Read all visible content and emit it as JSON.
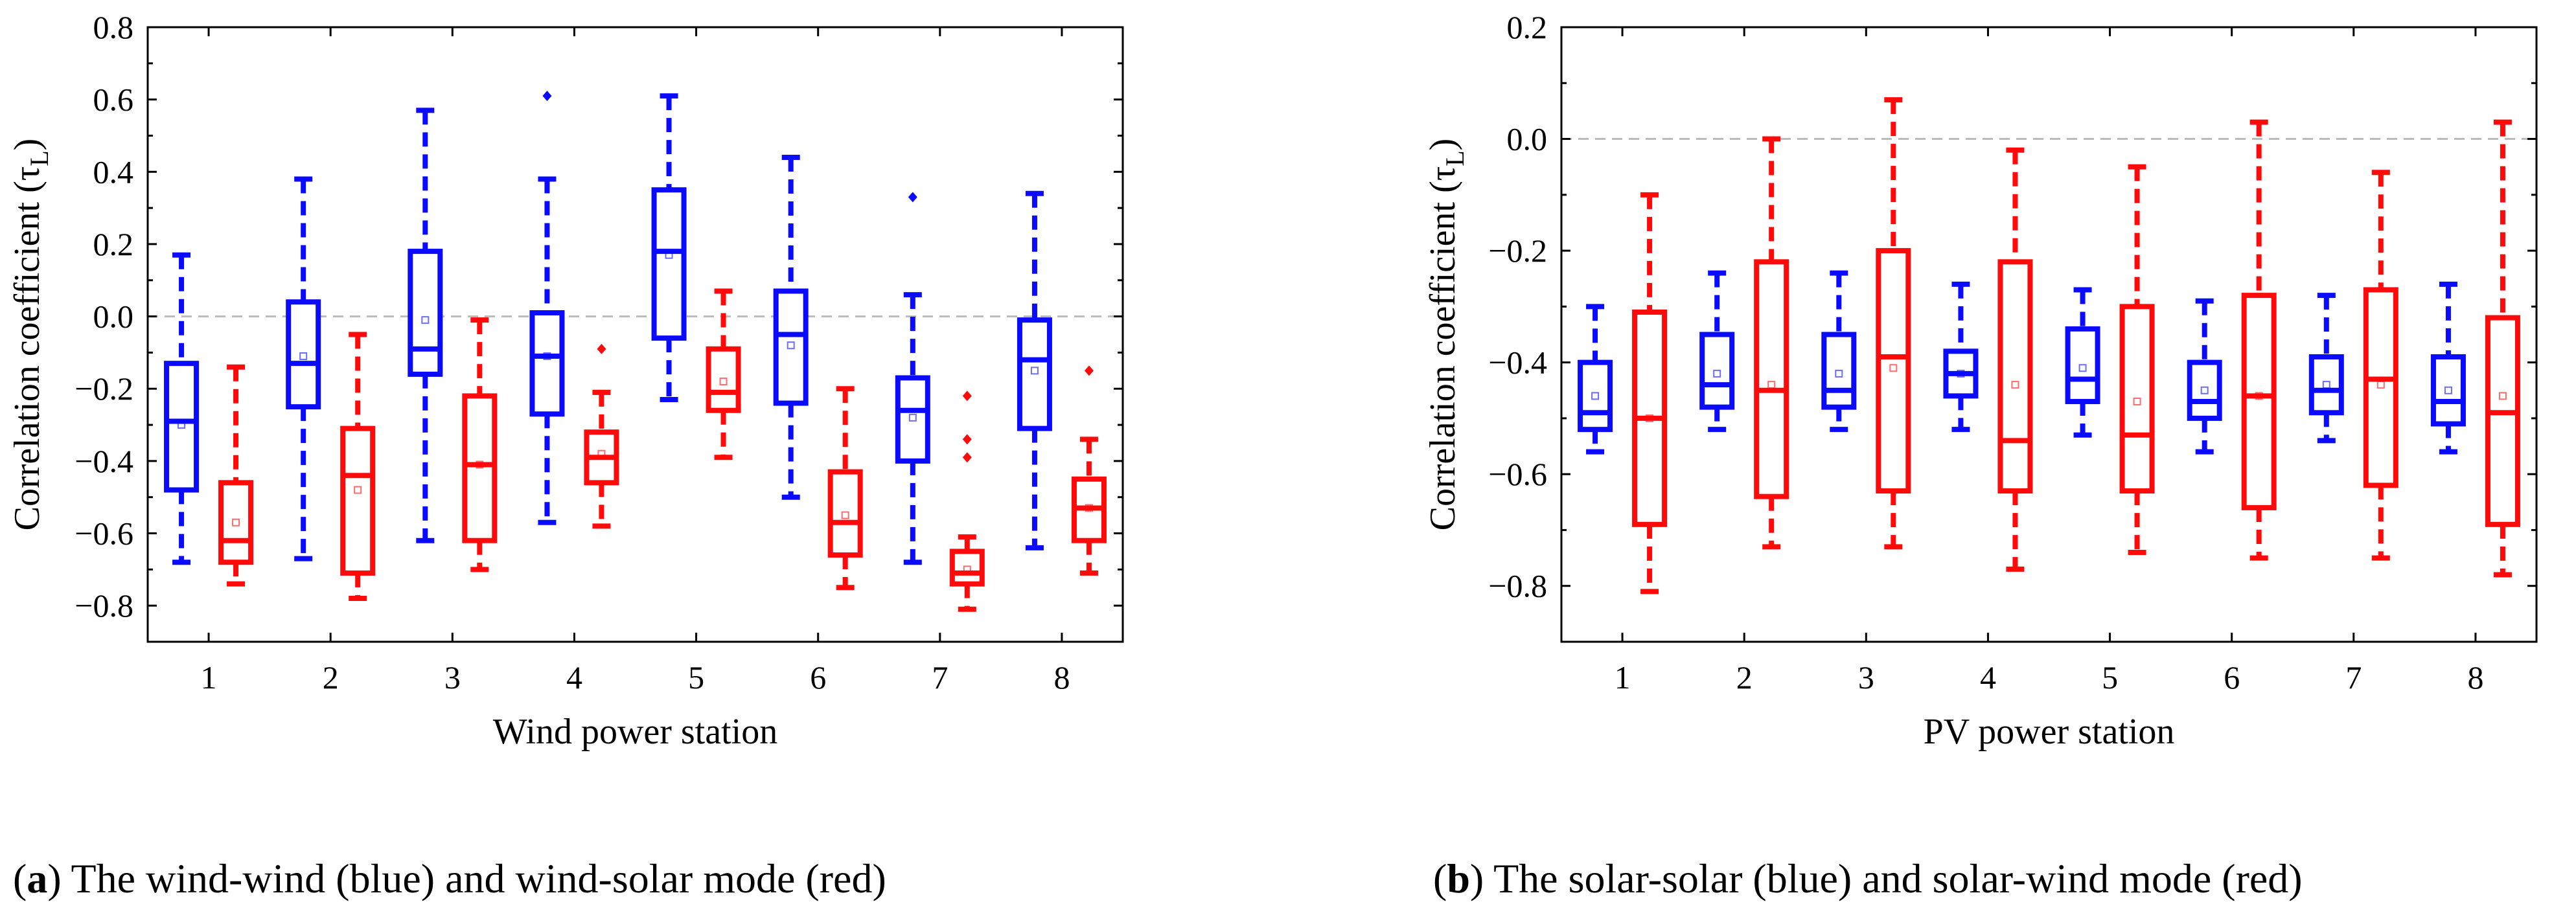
{
  "colors": {
    "blue": "#0a0aff",
    "red": "#ff0a0a",
    "zero_line": "#bbbbbb",
    "axis": "#000000"
  },
  "captions": {
    "a": {
      "label": "a",
      "text": " The wind-wind (blue) and wind-solar mode (red)"
    },
    "b": {
      "label": "b",
      "text": " The solar-solar (blue) and solar-wind mode (red)"
    }
  },
  "chart_data": [
    {
      "type": "box",
      "panel": "a",
      "xlabel": "Wind power station",
      "ylabel_main": "Correlation coefficient (τ",
      "ylabel_sub": "L",
      "ylabel_end": ")",
      "ylim": [
        -0.9,
        0.8
      ],
      "yticks": [
        -0.8,
        -0.6,
        -0.4,
        -0.2,
        0.0,
        0.2,
        0.4,
        0.6,
        0.8
      ],
      "ytick_labels": [
        "−0.8",
        "−0.6",
        "−0.4",
        "−0.2",
        "0.0",
        "0.2",
        "0.4",
        "0.6",
        "0.8"
      ],
      "categories": [
        "1",
        "2",
        "3",
        "4",
        "5",
        "6",
        "7",
        "8"
      ],
      "reference_line": 0.0,
      "series": [
        {
          "name": "wind-wind",
          "color": "blue",
          "boxes": [
            {
              "min": -0.68,
              "q1": -0.48,
              "median": -0.29,
              "q3": -0.13,
              "max": 0.17,
              "mean": -0.3,
              "outliers": []
            },
            {
              "min": -0.67,
              "q1": -0.25,
              "median": -0.13,
              "q3": 0.04,
              "max": 0.38,
              "mean": -0.11,
              "outliers": []
            },
            {
              "min": -0.62,
              "q1": -0.16,
              "median": -0.09,
              "q3": 0.18,
              "max": 0.57,
              "mean": -0.01,
              "outliers": []
            },
            {
              "min": -0.57,
              "q1": -0.27,
              "median": -0.11,
              "q3": 0.01,
              "max": 0.38,
              "mean": -0.11,
              "outliers": [
                0.61
              ]
            },
            {
              "min": -0.23,
              "q1": -0.06,
              "median": 0.18,
              "q3": 0.35,
              "max": 0.61,
              "mean": 0.17,
              "outliers": []
            },
            {
              "min": -0.5,
              "q1": -0.24,
              "median": -0.05,
              "q3": 0.07,
              "max": 0.44,
              "mean": -0.08,
              "outliers": []
            },
            {
              "min": -0.68,
              "q1": -0.4,
              "median": -0.26,
              "q3": -0.17,
              "max": 0.06,
              "mean": -0.28,
              "outliers": [
                0.33
              ]
            },
            {
              "min": -0.64,
              "q1": -0.31,
              "median": -0.12,
              "q3": -0.01,
              "max": 0.34,
              "mean": -0.15,
              "outliers": []
            }
          ]
        },
        {
          "name": "wind-solar",
          "color": "red",
          "boxes": [
            {
              "min": -0.74,
              "q1": -0.68,
              "median": -0.62,
              "q3": -0.46,
              "max": -0.14,
              "mean": -0.57,
              "outliers": []
            },
            {
              "min": -0.78,
              "q1": -0.71,
              "median": -0.44,
              "q3": -0.31,
              "max": -0.05,
              "mean": -0.48,
              "outliers": []
            },
            {
              "min": -0.7,
              "q1": -0.62,
              "median": -0.41,
              "q3": -0.22,
              "max": -0.01,
              "mean": -0.41,
              "outliers": []
            },
            {
              "min": -0.58,
              "q1": -0.46,
              "median": -0.39,
              "q3": -0.32,
              "max": -0.21,
              "mean": -0.38,
              "outliers": [
                -0.09
              ]
            },
            {
              "min": -0.39,
              "q1": -0.26,
              "median": -0.21,
              "q3": -0.09,
              "max": 0.07,
              "mean": -0.18,
              "outliers": []
            },
            {
              "min": -0.75,
              "q1": -0.66,
              "median": -0.57,
              "q3": -0.43,
              "max": -0.2,
              "mean": -0.55,
              "outliers": []
            },
            {
              "min": -0.81,
              "q1": -0.74,
              "median": -0.71,
              "q3": -0.65,
              "max": -0.61,
              "mean": -0.7,
              "outliers": [
                -0.22,
                -0.34,
                -0.39
              ]
            },
            {
              "min": -0.71,
              "q1": -0.62,
              "median": -0.53,
              "q3": -0.45,
              "max": -0.34,
              "mean": -0.53,
              "outliers": [
                -0.15
              ]
            }
          ]
        }
      ]
    },
    {
      "type": "box",
      "panel": "b",
      "xlabel": "PV power station",
      "ylabel_main": "Correlation coefficient (τ",
      "ylabel_sub": "L",
      "ylabel_end": ")",
      "ylim": [
        -0.9,
        0.2
      ],
      "yticks": [
        -0.8,
        -0.6,
        -0.4,
        -0.2,
        0.0,
        0.2
      ],
      "ytick_labels": [
        "−0.8",
        "−0.6",
        "−0.4",
        "−0.2",
        "0.0",
        "0.2"
      ],
      "categories": [
        "1",
        "2",
        "3",
        "4",
        "5",
        "6",
        "7",
        "8"
      ],
      "reference_line": 0.0,
      "series": [
        {
          "name": "solar-solar",
          "color": "blue",
          "boxes": [
            {
              "min": -0.56,
              "q1": -0.52,
              "median": -0.49,
              "q3": -0.4,
              "max": -0.3,
              "mean": -0.46,
              "outliers": []
            },
            {
              "min": -0.52,
              "q1": -0.48,
              "median": -0.44,
              "q3": -0.35,
              "max": -0.24,
              "mean": -0.42,
              "outliers": []
            },
            {
              "min": -0.52,
              "q1": -0.48,
              "median": -0.45,
              "q3": -0.35,
              "max": -0.24,
              "mean": -0.42,
              "outliers": []
            },
            {
              "min": -0.52,
              "q1": -0.46,
              "median": -0.42,
              "q3": -0.38,
              "max": -0.26,
              "mean": -0.42,
              "outliers": []
            },
            {
              "min": -0.53,
              "q1": -0.47,
              "median": -0.43,
              "q3": -0.34,
              "max": -0.27,
              "mean": -0.41,
              "outliers": []
            },
            {
              "min": -0.56,
              "q1": -0.5,
              "median": -0.47,
              "q3": -0.4,
              "max": -0.29,
              "mean": -0.45,
              "outliers": []
            },
            {
              "min": -0.54,
              "q1": -0.49,
              "median": -0.45,
              "q3": -0.39,
              "max": -0.28,
              "mean": -0.44,
              "outliers": []
            },
            {
              "min": -0.56,
              "q1": -0.51,
              "median": -0.47,
              "q3": -0.39,
              "max": -0.26,
              "mean": -0.45,
              "outliers": []
            }
          ]
        },
        {
          "name": "solar-wind",
          "color": "red",
          "boxes": [
            {
              "min": -0.81,
              "q1": -0.69,
              "median": -0.5,
              "q3": -0.31,
              "max": -0.1,
              "mean": -0.5,
              "outliers": []
            },
            {
              "min": -0.73,
              "q1": -0.64,
              "median": -0.45,
              "q3": -0.22,
              "max": 0.0,
              "mean": -0.44,
              "outliers": []
            },
            {
              "min": -0.73,
              "q1": -0.63,
              "median": -0.39,
              "q3": -0.2,
              "max": 0.07,
              "mean": -0.41,
              "outliers": []
            },
            {
              "min": -0.77,
              "q1": -0.63,
              "median": -0.54,
              "q3": -0.22,
              "max": -0.02,
              "mean": -0.44,
              "outliers": []
            },
            {
              "min": -0.74,
              "q1": -0.63,
              "median": -0.53,
              "q3": -0.3,
              "max": -0.05,
              "mean": -0.47,
              "outliers": []
            },
            {
              "min": -0.75,
              "q1": -0.66,
              "median": -0.46,
              "q3": -0.28,
              "max": 0.03,
              "mean": -0.46,
              "outliers": []
            },
            {
              "min": -0.75,
              "q1": -0.62,
              "median": -0.43,
              "q3": -0.27,
              "max": -0.06,
              "mean": -0.44,
              "outliers": []
            },
            {
              "min": -0.78,
              "q1": -0.69,
              "median": -0.49,
              "q3": -0.32,
              "max": 0.03,
              "mean": -0.46,
              "outliers": []
            }
          ]
        }
      ]
    }
  ]
}
